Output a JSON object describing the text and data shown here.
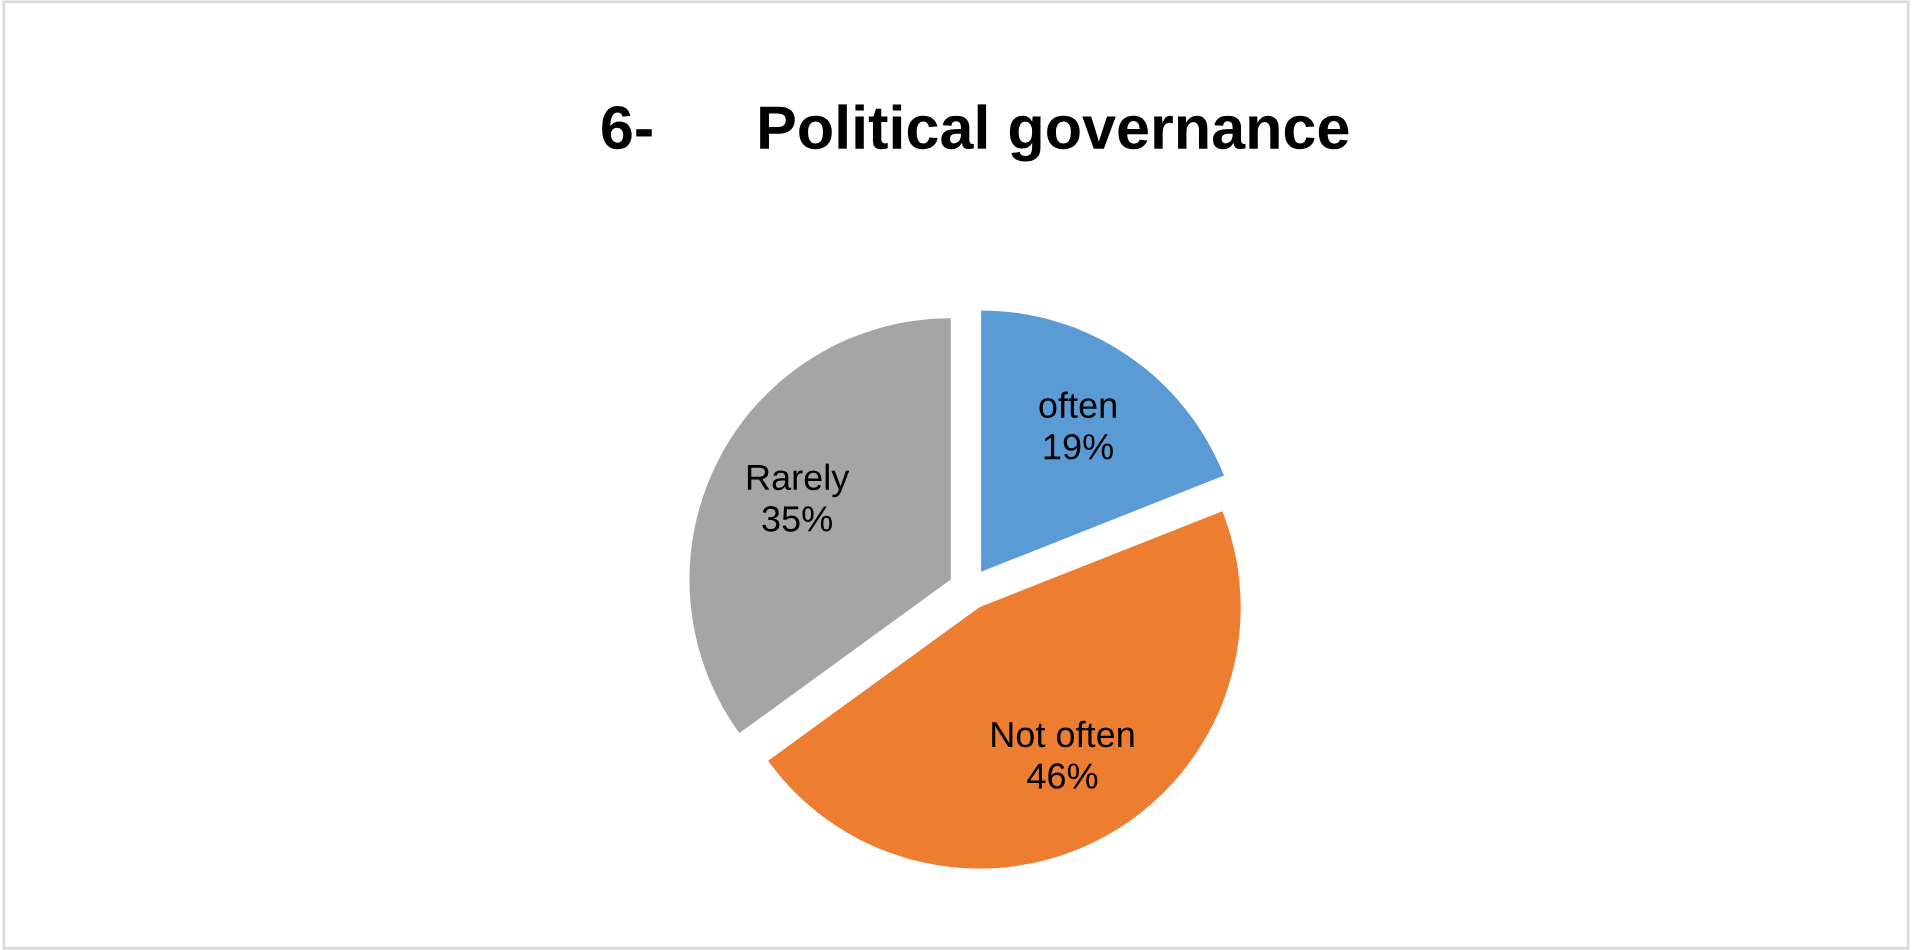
{
  "chart_data": {
    "type": "pie",
    "title": "6-      Political governance",
    "categories": [
      "often",
      "Not often",
      "Rarely"
    ],
    "values": [
      19,
      46,
      35
    ],
    "value_labels": [
      "19%",
      "46%",
      "35%"
    ],
    "colors": [
      "#5b9bd5",
      "#ed7d31",
      "#a5a5a5"
    ],
    "legend": false
  }
}
